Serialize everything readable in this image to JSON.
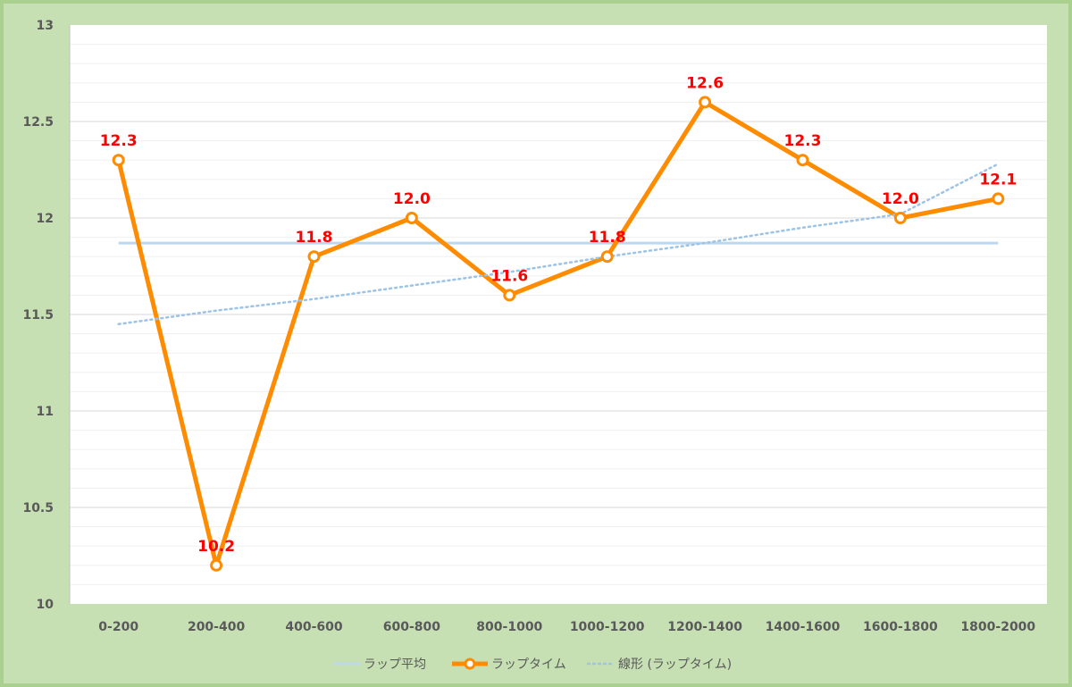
{
  "chart_data": {
    "type": "line",
    "categories": [
      "0-200",
      "200-400",
      "400-600",
      "600-800",
      "800-1000",
      "1000-1200",
      "1200-1400",
      "1400-1600",
      "1600-1800",
      "1800-2000"
    ],
    "ylim": [
      10,
      13
    ],
    "yticks": [
      10,
      10.5,
      11,
      11.5,
      12,
      12.5,
      13
    ],
    "ytick_labels": [
      "10",
      "10.5",
      "11",
      "11.5",
      "12",
      "12.5",
      "13"
    ],
    "grid": true,
    "legend_position": "bottom",
    "series": [
      {
        "name": "ラップ平均",
        "kind": "average",
        "color": "#bdd7ee",
        "values": [
          11.87,
          11.87,
          11.87,
          11.87,
          11.87,
          11.87,
          11.87,
          11.87,
          11.87,
          11.87
        ]
      },
      {
        "name": "ラップタイム",
        "kind": "line-markers",
        "color": "#ff8c00",
        "values": [
          12.3,
          10.2,
          11.8,
          12.0,
          11.6,
          11.8,
          12.6,
          12.3,
          12.0,
          12.1
        ],
        "data_labels": [
          "12.3",
          "10.2",
          "11.8",
          "12.0",
          "11.6",
          "11.8",
          "12.6",
          "12.3",
          "12.0",
          "12.1"
        ],
        "label_color": "#ff0000"
      },
      {
        "name": "線形 (ラップタイム)",
        "kind": "trendline",
        "color": "#9dc3e6",
        "values": [
          11.45,
          11.52,
          11.58,
          11.65,
          11.72,
          11.8,
          11.87,
          11.95,
          12.02,
          12.28
        ]
      }
    ]
  }
}
